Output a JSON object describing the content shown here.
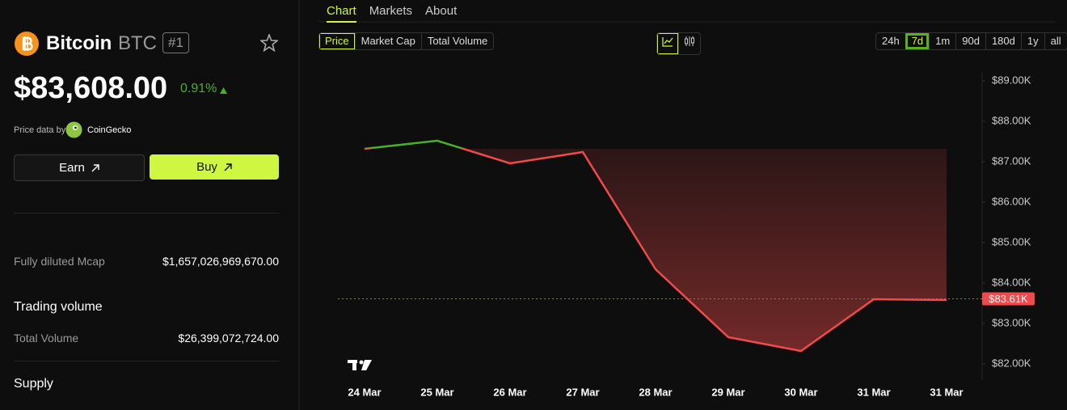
{
  "header": {
    "name": "Bitcoin",
    "symbol": "BTC",
    "rank": "#1",
    "price": "$83,608.00",
    "change": "0.91%",
    "price_source_label": "Price data by",
    "price_source": "CoinGecko"
  },
  "buttons": {
    "earn": "Earn",
    "buy": "Buy"
  },
  "market": {
    "fdv": {
      "label": "Fully diluted Mcap",
      "value": "$1,657,026,969,670.00"
    },
    "trading_volume": {
      "title": "Trading volume",
      "total": {
        "label": "Total Volume",
        "value": "$26,399,072,724.00"
      }
    },
    "supply": {
      "title": "Supply"
    }
  },
  "tabs": [
    "Chart",
    "Markets",
    "About"
  ],
  "metric_tabs": [
    "Price",
    "Market Cap",
    "Total Volume"
  ],
  "ranges": [
    "24h",
    "7d",
    "1m",
    "90d",
    "180d",
    "1y",
    "all"
  ],
  "chart_data": {
    "type": "line",
    "categories": [
      "24 Mar",
      "25 Mar",
      "26 Mar",
      "27 Mar",
      "28 Mar",
      "29 Mar",
      "30 Mar",
      "31 Mar",
      "31 Mar"
    ],
    "values": [
      87320,
      87520,
      86960,
      87240,
      84340,
      82660,
      82320,
      83600,
      83580
    ],
    "up_color": "#4caf2a",
    "down_color": "#f04a4a",
    "ylim": [
      81600,
      89200
    ],
    "yticks": [
      {
        "value": 82000,
        "label": "$82.00K"
      },
      {
        "value": 83000,
        "label": "$83.00K"
      },
      {
        "value": 84000,
        "label": "$84.00K"
      },
      {
        "value": 85000,
        "label": "$85.00K"
      },
      {
        "value": 86000,
        "label": "$86.00K"
      },
      {
        "value": 87000,
        "label": "$87.00K"
      },
      {
        "value": 88000,
        "label": "$88.00K"
      },
      {
        "value": 89000,
        "label": "$89.00K"
      }
    ],
    "last_price": {
      "value": 83610,
      "label": "$83.61K"
    }
  }
}
